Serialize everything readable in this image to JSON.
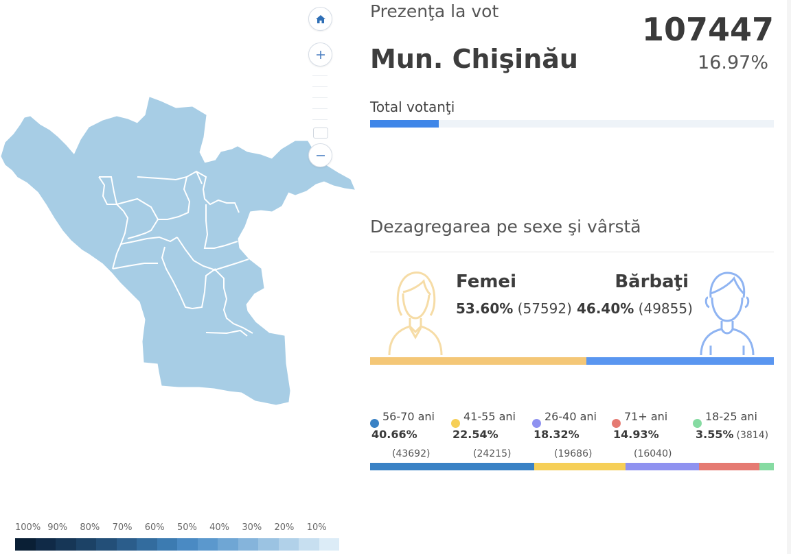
{
  "map": {
    "home_icon": "home-icon",
    "zoom_in_icon": "plus-icon",
    "zoom_out_icon": "minus-icon",
    "fill_color": "#a7cde5",
    "border_color": "#ffffff"
  },
  "legend": {
    "labels": [
      "100%",
      "90%",
      "80%",
      "70%",
      "60%",
      "50%",
      "40%",
      "30%",
      "20%",
      "10%"
    ],
    "colors": [
      "#0a1f35",
      "#102a47",
      "#163656",
      "#1c4266",
      "#234f78",
      "#2b5d8b",
      "#336c9e",
      "#3c7bb1",
      "#4a8ac3",
      "#5b98cd",
      "#6fa6d4",
      "#85b4db",
      "#9bc3e2",
      "#b1d1e9",
      "#c7dff0",
      "#dcecf7"
    ]
  },
  "header": {
    "title": "Prezenţa la vot",
    "total_votes": "107447",
    "region": "Mun. Chişinău",
    "turnout_percent": "16.97%",
    "turnout_fraction": 0.17
  },
  "total_votanti": {
    "label": "Total votanţi",
    "fill_fraction": 0.17,
    "color": "#3f86e8"
  },
  "breakdown": {
    "title": "Dezagregarea pe sexe şi vârstă"
  },
  "gender": {
    "female": {
      "label": "Femei",
      "percent": "53.60%",
      "count": "(57592)",
      "fraction": 0.536,
      "color": "#f4c777"
    },
    "male": {
      "label": "Bărbaţi",
      "percent": "46.40%",
      "count": "(49855)",
      "fraction": 0.464,
      "color": "#5a96f0"
    },
    "female_icon": "female-avatar-icon",
    "male_icon": "male-avatar-icon"
  },
  "age_groups": [
    {
      "name": "56-70 ani",
      "percent": "40.66%",
      "count": "(43692)",
      "fraction": 0.4066,
      "color": "#3a82c5"
    },
    {
      "name": "41-55 ani",
      "percent": "22.54%",
      "count": "(24215)",
      "fraction": 0.2254,
      "color": "#f6cf57"
    },
    {
      "name": "26-40 ani",
      "percent": "18.32%",
      "count": "(19686)",
      "fraction": 0.1832,
      "color": "#8f92f0"
    },
    {
      "name": "71+ ani",
      "percent": "14.93%",
      "count": "(16040)",
      "fraction": 0.1493,
      "color": "#e57a72"
    },
    {
      "name": "18-25 ani",
      "percent": "3.55%",
      "count": "(3814)",
      "fraction": 0.0355,
      "color": "#86dba2"
    }
  ]
}
